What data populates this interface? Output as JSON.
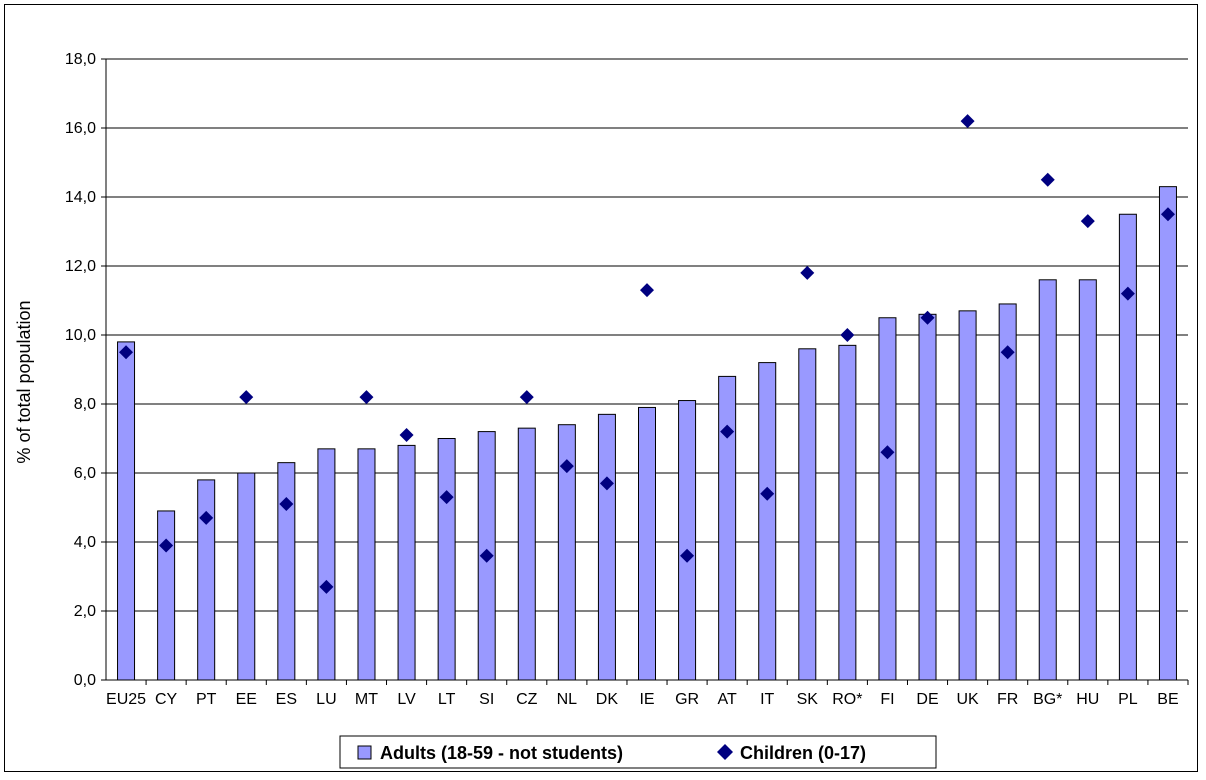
{
  "chart_data": {
    "type": "bar",
    "categories": [
      "EU25",
      "CY",
      "PT",
      "EE",
      "ES",
      "LU",
      "MT",
      "LV",
      "LT",
      "SI",
      "CZ",
      "NL",
      "DK",
      "IE",
      "GR",
      "AT",
      "IT",
      "SK",
      "RO*",
      "FI",
      "DE",
      "UK",
      "FR",
      "BG*",
      "HU",
      "PL",
      "BE"
    ],
    "series": [
      {
        "name": "Adults (18-59 - not students)",
        "type": "bar",
        "color": "#9999ff",
        "values": [
          9.8,
          4.9,
          5.8,
          6.0,
          6.3,
          6.7,
          6.7,
          6.8,
          7.0,
          7.2,
          7.3,
          7.4,
          7.7,
          7.9,
          8.1,
          8.8,
          9.2,
          9.6,
          9.7,
          10.5,
          10.6,
          10.7,
          10.9,
          11.6,
          11.6,
          13.5,
          14.3
        ]
      },
      {
        "name": "Children (0-17)",
        "type": "scatter",
        "marker": "diamond",
        "color": "#000080",
        "values": [
          9.5,
          3.9,
          4.7,
          8.2,
          5.1,
          2.7,
          8.2,
          7.1,
          5.3,
          3.6,
          8.2,
          6.2,
          5.7,
          11.3,
          3.6,
          7.2,
          5.4,
          11.8,
          10.0,
          6.6,
          10.5,
          16.2,
          9.5,
          14.5,
          13.3,
          11.2,
          13.5
        ]
      }
    ],
    "ylabel": "% of total population",
    "ylim": [
      0,
      18
    ],
    "yticks": [
      "0,0",
      "2,0",
      "4,0",
      "6,0",
      "8,0",
      "10,0",
      "12,0",
      "14,0",
      "16,0",
      "18,0"
    ],
    "grid": true,
    "legend_position": "bottom"
  }
}
